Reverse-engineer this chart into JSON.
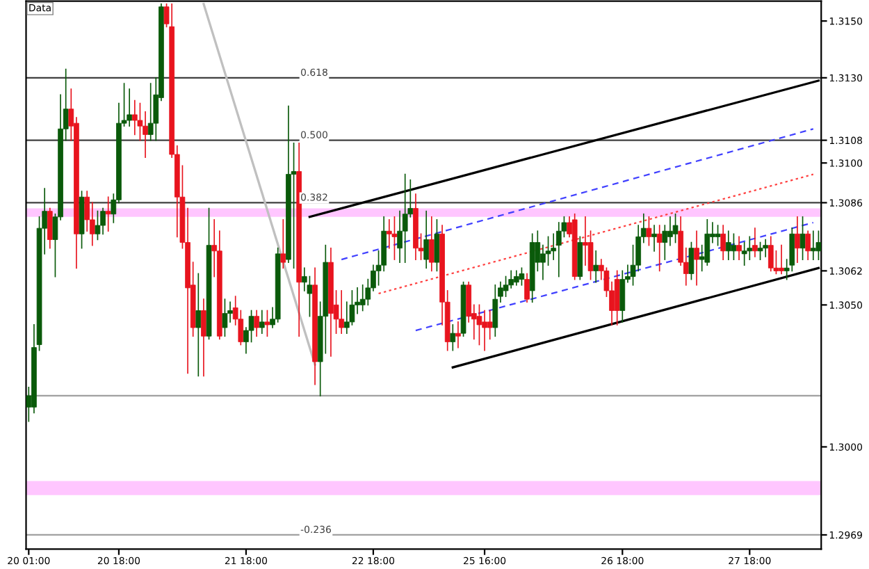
{
  "chart_data": {
    "type": "candlestick",
    "categories": [
      "20 01:00",
      null,
      null,
      null,
      null,
      null,
      null,
      null,
      null,
      null,
      null,
      null,
      null,
      null,
      null,
      null,
      null,
      "20 18:00",
      null,
      null,
      null,
      null,
      null,
      null,
      null,
      null,
      null,
      null,
      null,
      null,
      null,
      null,
      null,
      null,
      null,
      null,
      null,
      null,
      null,
      null,
      null,
      "21 18:00",
      null,
      null,
      null,
      null,
      null,
      null,
      null,
      null,
      null,
      null,
      null,
      null,
      null,
      null,
      null,
      null,
      null,
      null,
      null,
      null,
      null,
      null,
      null,
      "22 18:00",
      null,
      null,
      null,
      null,
      null,
      null,
      null,
      null,
      null,
      null,
      null,
      null,
      null,
      null,
      null,
      null,
      null,
      null,
      null,
      null,
      "25 16:00",
      null,
      null,
      null,
      null,
      null,
      null,
      null,
      null,
      null,
      null,
      null,
      null,
      null,
      null,
      null,
      null,
      null,
      null,
      null,
      null,
      null,
      null,
      null,
      null,
      null,
      "26 18:00",
      null,
      null,
      null,
      null,
      null,
      null,
      null,
      null,
      null,
      null,
      null,
      null,
      null,
      null,
      null,
      null,
      null,
      null,
      null,
      null,
      null,
      null,
      null,
      "27 18:00",
      null,
      null,
      null,
      null,
      null,
      null,
      null,
      null,
      null,
      null,
      null,
      null,
      null
    ],
    "ohlc": [
      [
        1.3014,
        1.3021,
        1.3009,
        1.3018
      ],
      [
        1.3014,
        1.3043,
        1.3012,
        1.3035
      ],
      [
        1.3036,
        1.3081,
        1.3034,
        1.3077
      ],
      [
        1.3077,
        1.3091,
        1.3068,
        1.3083
      ],
      [
        1.3083,
        1.3084,
        1.307,
        1.3073
      ],
      [
        1.3073,
        1.3082,
        1.306,
        1.3081
      ],
      [
        1.3081,
        1.3124,
        1.308,
        1.3112
      ],
      [
        1.3112,
        1.3133,
        1.3108,
        1.3119
      ],
      [
        1.3119,
        1.3126,
        1.3108,
        1.3113
      ],
      [
        1.3114,
        1.3116,
        1.3063,
        1.3075
      ],
      [
        1.3075,
        1.309,
        1.307,
        1.3088
      ],
      [
        1.3088,
        1.309,
        1.3076,
        1.308
      ],
      [
        1.308,
        1.3086,
        1.3071,
        1.3075
      ],
      [
        1.3075,
        1.3083,
        1.3073,
        1.3078
      ],
      [
        1.3078,
        1.3084,
        1.3075,
        1.3083
      ],
      [
        1.3083,
        1.3088,
        1.3076,
        1.3082
      ],
      [
        1.3082,
        1.3089,
        1.3079,
        1.3087
      ],
      [
        1.3087,
        1.3121,
        1.3086,
        1.3114
      ],
      [
        1.3114,
        1.3128,
        1.3113,
        1.3115
      ],
      [
        1.3115,
        1.3126,
        1.3113,
        1.3117
      ],
      [
        1.3117,
        1.3122,
        1.311,
        1.3115
      ],
      [
        1.3115,
        1.3121,
        1.3108,
        1.3113
      ],
      [
        1.3113,
        1.3118,
        1.3102,
        1.311
      ],
      [
        1.311,
        1.3128,
        1.3108,
        1.3114
      ],
      [
        1.3114,
        1.313,
        1.3108,
        1.3124
      ],
      [
        1.3123,
        1.3156,
        1.3122,
        1.3155
      ],
      [
        1.3155,
        1.3156,
        1.3148,
        1.3149
      ],
      [
        1.3148,
        1.3156,
        1.3102,
        1.3103
      ],
      [
        1.3103,
        1.3106,
        1.3074,
        1.3088
      ],
      [
        1.3088,
        1.3099,
        1.307,
        1.3072
      ],
      [
        1.3072,
        1.3084,
        1.3026,
        1.3056
      ],
      [
        1.3057,
        1.3065,
        1.3039,
        1.3042
      ],
      [
        1.3042,
        1.3061,
        1.3025,
        1.3048
      ],
      [
        1.3048,
        1.3052,
        1.3025,
        1.3039
      ],
      [
        1.3039,
        1.3084,
        1.3038,
        1.3071
      ],
      [
        1.3071,
        1.308,
        1.306,
        1.3069
      ],
      [
        1.3069,
        1.3076,
        1.3038,
        1.3039
      ],
      [
        1.3042,
        1.3052,
        1.3039,
        1.3047
      ],
      [
        1.3047,
        1.3051,
        1.3044,
        1.3048
      ],
      [
        1.3049,
        1.3053,
        1.3043,
        1.3045
      ],
      [
        1.3045,
        1.3048,
        1.3036,
        1.3037
      ],
      [
        1.3037,
        1.3042,
        1.3033,
        1.3041
      ],
      [
        1.3041,
        1.3048,
        1.3037,
        1.3046
      ],
      [
        1.3046,
        1.3048,
        1.3039,
        1.3042
      ],
      [
        1.3042,
        1.3048,
        1.304,
        1.3044
      ],
      [
        1.3044,
        1.3048,
        1.3039,
        1.3043
      ],
      [
        1.3043,
        1.3049,
        1.3042,
        1.3045
      ],
      [
        1.3045,
        1.307,
        1.3044,
        1.3068
      ],
      [
        1.3068,
        1.308,
        1.3063,
        1.3065
      ],
      [
        1.3066,
        1.312,
        1.3065,
        1.3096
      ],
      [
        1.3096,
        1.3107,
        1.3063,
        1.3097
      ],
      [
        1.3097,
        1.3107,
        1.3039,
        1.3058
      ],
      [
        1.3058,
        1.3063,
        1.3055,
        1.306
      ],
      [
        1.3054,
        1.306,
        1.3046,
        1.3057
      ],
      [
        1.3057,
        1.3063,
        1.3022,
        1.303
      ],
      [
        1.303,
        1.3051,
        1.3018,
        1.3046
      ],
      [
        1.3046,
        1.3071,
        1.3033,
        1.3065
      ],
      [
        1.3065,
        1.307,
        1.3032,
        1.3047
      ],
      [
        1.305,
        1.3055,
        1.304,
        1.3045
      ],
      [
        1.3045,
        1.3055,
        1.304,
        1.3042
      ],
      [
        1.3042,
        1.3051,
        1.304,
        1.3044
      ],
      [
        1.3044,
        1.3055,
        1.3043,
        1.305
      ],
      [
        1.305,
        1.3056,
        1.3047,
        1.3051
      ],
      [
        1.305,
        1.3057,
        1.3048,
        1.3052
      ],
      [
        1.3052,
        1.3059,
        1.305,
        1.3056
      ],
      [
        1.3056,
        1.3064,
        1.3055,
        1.3062
      ],
      [
        1.3062,
        1.3069,
        1.3057,
        1.3064
      ],
      [
        1.3064,
        1.3081,
        1.3062,
        1.3076
      ],
      [
        1.3076,
        1.308,
        1.307,
        1.3075
      ],
      [
        1.3075,
        1.3081,
        1.3066,
        1.3074
      ],
      [
        1.307,
        1.3083,
        1.3065,
        1.3076
      ],
      [
        1.3076,
        1.3096,
        1.3065,
        1.3082
      ],
      [
        1.3082,
        1.3094,
        1.3081,
        1.3084
      ],
      [
        1.3084,
        1.3089,
        1.3066,
        1.307
      ],
      [
        1.307,
        1.3075,
        1.3066,
        1.3069
      ],
      [
        1.3066,
        1.3083,
        1.3063,
        1.3073
      ],
      [
        1.3073,
        1.3081,
        1.3062,
        1.3065
      ],
      [
        1.3065,
        1.308,
        1.3062,
        1.3075
      ],
      [
        1.3075,
        1.3078,
        1.3043,
        1.3051
      ],
      [
        1.3051,
        1.3055,
        1.3034,
        1.3037
      ],
      [
        1.3037,
        1.3043,
        1.3034,
        1.304
      ],
      [
        1.304,
        1.3044,
        1.3035,
        1.3039
      ],
      [
        1.304,
        1.3058,
        1.3039,
        1.3057
      ],
      [
        1.3057,
        1.3058,
        1.3044,
        1.3046
      ],
      [
        1.3047,
        1.305,
        1.3038,
        1.3045
      ],
      [
        1.3046,
        1.305,
        1.3036,
        1.3043
      ],
      [
        1.3044,
        1.3048,
        1.3034,
        1.3042
      ],
      [
        1.3044,
        1.3048,
        1.3038,
        1.3042
      ],
      [
        1.3042,
        1.3057,
        1.3039,
        1.3052
      ],
      [
        1.3053,
        1.3058,
        1.3051,
        1.3056
      ],
      [
        1.3055,
        1.306,
        1.3053,
        1.3057
      ],
      [
        1.3057,
        1.3062,
        1.3056,
        1.3059
      ],
      [
        1.3058,
        1.3062,
        1.3057,
        1.306
      ],
      [
        1.3059,
        1.3063,
        1.3057,
        1.3061
      ],
      [
        1.3059,
        1.3061,
        1.3051,
        1.3052
      ],
      [
        1.3055,
        1.3075,
        1.3051,
        1.3072
      ],
      [
        1.3065,
        1.3076,
        1.3062,
        1.3072
      ],
      [
        1.3065,
        1.3071,
        1.3059,
        1.3068
      ],
      [
        1.3068,
        1.3074,
        1.3064,
        1.3069
      ],
      [
        1.3069,
        1.3075,
        1.3066,
        1.307
      ],
      [
        1.3071,
        1.3079,
        1.306,
        1.3076
      ],
      [
        1.3076,
        1.3081,
        1.3074,
        1.3079
      ],
      [
        1.3079,
        1.3081,
        1.3074,
        1.3075
      ],
      [
        1.308,
        1.3082,
        1.3059,
        1.306
      ],
      [
        1.306,
        1.3074,
        1.3059,
        1.3072
      ],
      [
        1.3072,
        1.3081,
        1.3064,
        1.3071
      ],
      [
        1.3072,
        1.3076,
        1.3059,
        1.3062
      ],
      [
        1.3062,
        1.3069,
        1.3058,
        1.3064
      ],
      [
        1.3064,
        1.3066,
        1.3059,
        1.3062
      ],
      [
        1.3062,
        1.3063,
        1.3053,
        1.3055
      ],
      [
        1.3055,
        1.3058,
        1.3043,
        1.3048
      ],
      [
        1.3059,
        1.3062,
        1.3043,
        1.3048
      ],
      [
        1.3048,
        1.3062,
        1.3044,
        1.3059
      ],
      [
        1.3059,
        1.3064,
        1.3058,
        1.306
      ],
      [
        1.306,
        1.3071,
        1.3057,
        1.3064
      ],
      [
        1.3064,
        1.3078,
        1.3062,
        1.3074
      ],
      [
        1.3074,
        1.3082,
        1.3072,
        1.3077
      ],
      [
        1.3077,
        1.3081,
        1.3071,
        1.3074
      ],
      [
        1.3074,
        1.3078,
        1.3069,
        1.3075
      ],
      [
        1.3075,
        1.3078,
        1.3062,
        1.3072
      ],
      [
        1.3072,
        1.3078,
        1.3066,
        1.3076
      ],
      [
        1.3074,
        1.3081,
        1.3071,
        1.3076
      ],
      [
        1.3075,
        1.3082,
        1.3072,
        1.3078
      ],
      [
        1.3076,
        1.3081,
        1.3064,
        1.3065
      ],
      [
        1.3065,
        1.307,
        1.3057,
        1.3061
      ],
      [
        1.3061,
        1.3072,
        1.3059,
        1.307
      ],
      [
        1.307,
        1.3076,
        1.3057,
        1.3066
      ],
      [
        1.3066,
        1.3071,
        1.3062,
        1.3067
      ],
      [
        1.3065,
        1.308,
        1.3064,
        1.3075
      ],
      [
        1.3074,
        1.3079,
        1.3072,
        1.3075
      ],
      [
        1.3074,
        1.3078,
        1.3071,
        1.3075
      ],
      [
        1.3075,
        1.3078,
        1.3066,
        1.3069
      ],
      [
        1.3069,
        1.3076,
        1.3066,
        1.3072
      ],
      [
        1.3069,
        1.3075,
        1.3066,
        1.3071
      ],
      [
        1.3071,
        1.3074,
        1.3066,
        1.3069
      ],
      [
        1.3068,
        1.3072,
        1.3064,
        1.3069
      ],
      [
        1.3069,
        1.3074,
        1.3066,
        1.307
      ],
      [
        1.3071,
        1.3077,
        1.3067,
        1.3069
      ],
      [
        1.3069,
        1.3072,
        1.3066,
        1.307
      ],
      [
        1.307,
        1.3073,
        1.3067,
        1.3071
      ],
      [
        1.3071,
        1.3074,
        1.3062,
        1.3063
      ],
      [
        1.3063,
        1.3069,
        1.3061,
        1.3062
      ],
      [
        1.3063,
        1.3071,
        1.3061,
        1.3062
      ],
      [
        1.3062,
        1.3066,
        1.3059,
        1.3063
      ],
      [
        1.3064,
        1.3077,
        1.3062,
        1.3075
      ],
      [
        1.3075,
        1.3081,
        1.3065,
        1.307
      ],
      [
        1.307,
        1.3081,
        1.3066,
        1.3075
      ],
      [
        1.3075,
        1.3076,
        1.3066,
        1.3069
      ],
      [
        1.3069,
        1.3076,
        1.3066,
        1.307
      ],
      [
        1.3069,
        1.3076,
        1.3066,
        1.3072
      ]
    ],
    "colors": [
      "#0a5a0a",
      "#0a5a0a",
      "#0a5a0a",
      "#0a5a0a",
      "#e8141e",
      "#0a5a0a",
      "#0a5a0a",
      "#0a5a0a",
      "#e8141e",
      "#e8141e",
      "#0a5a0a",
      "#e8141e",
      "#e8141e",
      "#0a5a0a",
      "#0a5a0a",
      "#e8141e",
      "#0a5a0a",
      "#0a5a0a",
      "#0a5a0a",
      "#0a5a0a",
      "#e8141e",
      "#e8141e",
      "#e8141e",
      "#0a5a0a",
      "#0a5a0a",
      "#0a5a0a",
      "#e8141e",
      "#e8141e",
      "#e8141e",
      "#e8141e",
      "#e8141e",
      "#e8141e",
      "#0a5a0a",
      "#e8141e",
      "#0a5a0a",
      "#e8141e",
      "#e8141e",
      "#0a5a0a",
      "#0a5a0a",
      "#e8141e",
      "#e8141e",
      "#0a5a0a",
      "#0a5a0a",
      "#e8141e",
      "#0a5a0a",
      "#e8141e",
      "#0a5a0a",
      "#0a5a0a",
      "#e8141e",
      "#0a5a0a",
      "#0a5a0a",
      "#e8141e",
      "#0a5a0a",
      "#0a5a0a",
      "#e8141e",
      "#0a5a0a",
      "#0a5a0a",
      "#e8141e",
      "#e8141e",
      "#e8141e",
      "#0a5a0a",
      "#0a5a0a",
      "#0a5a0a",
      "#0a5a0a",
      "#0a5a0a",
      "#0a5a0a",
      "#0a5a0a",
      "#0a5a0a",
      "#e8141e",
      "#e8141e",
      "#0a5a0a",
      "#0a5a0a",
      "#0a5a0a",
      "#e8141e",
      "#e8141e",
      "#0a5a0a",
      "#e8141e",
      "#0a5a0a",
      "#e8141e",
      "#e8141e",
      "#0a5a0a",
      "#e8141e",
      "#0a5a0a",
      "#e8141e",
      "#e8141e",
      "#e8141e",
      "#e8141e",
      "#e8141e",
      "#0a5a0a",
      "#0a5a0a",
      "#0a5a0a",
      "#0a5a0a",
      "#0a5a0a",
      "#0a5a0a",
      "#e8141e",
      "#0a5a0a",
      "#0a5a0a",
      "#0a5a0a",
      "#0a5a0a",
      "#0a5a0a",
      "#0a5a0a",
      "#0a5a0a",
      "#e8141e",
      "#e8141e",
      "#0a5a0a",
      "#e8141e",
      "#e8141e",
      "#0a5a0a",
      "#e8141e",
      "#e8141e",
      "#e8141e",
      "#e8141e",
      "#0a5a0a",
      "#0a5a0a",
      "#0a5a0a",
      "#0a5a0a",
      "#0a5a0a",
      "#e8141e",
      "#0a5a0a",
      "#e8141e",
      "#0a5a0a",
      "#0a5a0a",
      "#0a5a0a",
      "#e8141e",
      "#e8141e",
      "#0a5a0a",
      "#e8141e",
      "#0a5a0a",
      "#0a5a0a",
      "#0a5a0a",
      "#0a5a0a",
      "#e8141e",
      "#0a5a0a",
      "#0a5a0a",
      "#e8141e",
      "#0a5a0a",
      "#0a5a0a",
      "#e8141e",
      "#0a5a0a",
      "#0a5a0a",
      "#e8141e",
      "#e8141e",
      "#e8141e",
      "#0a5a0a",
      "#0a5a0a",
      "#e8141e",
      "#0a5a0a",
      "#e8141e",
      "#0a5a0a",
      "#0a5a0a"
    ],
    "series": [
      {
        "type": "line",
        "color": "#000000",
        "line_style": "solid",
        "values": [
          null,
          null,
          null,
          null,
          null,
          null,
          null,
          null,
          null,
          null,
          null,
          null,
          null,
          null,
          null,
          null,
          null,
          null,
          null,
          null,
          null,
          null,
          null,
          null,
          null,
          null,
          null,
          null,
          null,
          null,
          null,
          null,
          null,
          null,
          null,
          null,
          null,
          null,
          null,
          null,
          null,
          null,
          null,
          null,
          null,
          null,
          null,
          null,
          null,
          null,
          null,
          null,
          null,
          1.3081,
          null,
          null,
          null,
          null,
          null,
          null,
          null,
          null,
          null,
          null,
          null,
          null,
          null,
          null,
          null,
          null,
          null,
          null,
          null,
          null,
          null,
          null,
          null,
          null,
          null,
          null,
          null,
          null,
          null,
          null,
          null,
          null,
          null,
          null,
          null,
          null,
          null,
          null,
          null,
          null,
          null,
          null,
          null,
          null,
          null,
          null,
          null,
          null,
          null,
          null,
          null,
          null,
          null,
          null,
          null,
          null,
          null,
          null,
          null,
          null,
          null,
          null,
          null,
          null,
          null,
          null,
          null,
          null,
          null,
          null,
          null,
          null,
          null,
          null,
          null,
          null,
          null,
          null,
          null,
          null,
          null,
          null,
          null,
          null,
          null,
          null,
          null,
          null,
          null,
          null,
          null,
          null,
          null,
          null,
          null,
          1.3129
        ]
      },
      {
        "type": "line",
        "color": "#000000",
        "line_style": "solid",
        "values": [
          null,
          null,
          null,
          null,
          null,
          null,
          null,
          null,
          null,
          null,
          null,
          null,
          null,
          null,
          null,
          null,
          null,
          null,
          null,
          null,
          null,
          null,
          null,
          null,
          null,
          null,
          null,
          null,
          null,
          null,
          null,
          null,
          null,
          null,
          null,
          null,
          null,
          null,
          null,
          null,
          null,
          null,
          null,
          null,
          null,
          null,
          null,
          null,
          null,
          null,
          null,
          null,
          null,
          null,
          null,
          null,
          null,
          null,
          null,
          null,
          null,
          null,
          null,
          null,
          null,
          null,
          null,
          null,
          null,
          null,
          null,
          null,
          null,
          null,
          null,
          null,
          null,
          null,
          null,
          null,
          1.3028,
          null,
          null,
          null,
          null,
          null,
          null,
          null,
          null,
          null,
          null,
          null,
          null,
          null,
          null,
          null,
          null,
          null,
          null,
          null,
          null,
          null,
          null,
          null,
          null,
          null,
          null,
          null,
          null,
          null,
          null,
          null,
          null,
          null,
          null,
          null,
          null,
          null,
          null,
          null,
          null,
          null,
          null,
          null,
          null,
          null,
          null,
          null,
          null,
          null,
          null,
          null,
          null,
          null,
          null,
          null,
          null,
          null,
          null,
          null,
          null,
          null,
          null,
          null,
          null,
          null,
          null,
          null,
          null,
          1.3063
        ]
      },
      {
        "type": "line",
        "color": "#4040ff",
        "line_style": "dashed",
        "values": [
          null,
          null,
          null,
          null,
          null,
          null,
          null,
          null,
          null,
          null,
          null,
          null,
          null,
          null,
          null,
          null,
          null,
          null,
          null,
          null,
          null,
          null,
          null,
          null,
          null,
          null,
          null,
          null,
          null,
          null,
          null,
          null,
          null,
          null,
          null,
          null,
          null,
          null,
          null,
          null,
          null,
          null,
          null,
          null,
          null,
          null,
          null,
          null,
          null,
          null,
          null,
          null,
          null,
          null,
          null,
          null,
          null,
          null,
          null,
          1.3066,
          null,
          null,
          null,
          null,
          null,
          null,
          null,
          null,
          null,
          null,
          null,
          null,
          null,
          null,
          null,
          null,
          null,
          null,
          null,
          null,
          null,
          null,
          null,
          null,
          null,
          null,
          null,
          null,
          null,
          null,
          null,
          null,
          null,
          null,
          null,
          null,
          null,
          null,
          null,
          null,
          null,
          null,
          null,
          null,
          null,
          null,
          null,
          null,
          null,
          null,
          null,
          null,
          null,
          null,
          null,
          null,
          null,
          null,
          null,
          null,
          null,
          null,
          null,
          null,
          null,
          null,
          null,
          null,
          null,
          null,
          null,
          null,
          null,
          null,
          null,
          null,
          null,
          null,
          null,
          null,
          null,
          null,
          null,
          null,
          null,
          null,
          null,
          null,
          1.3112,
          null
        ]
      },
      {
        "type": "line",
        "color": "#ff4040",
        "line_style": "dotted",
        "values": [
          null,
          null,
          null,
          null,
          null,
          null,
          null,
          null,
          null,
          null,
          null,
          null,
          null,
          null,
          null,
          null,
          null,
          null,
          null,
          null,
          null,
          null,
          null,
          null,
          null,
          null,
          null,
          null,
          null,
          null,
          null,
          null,
          null,
          null,
          null,
          null,
          null,
          null,
          null,
          null,
          null,
          null,
          null,
          null,
          null,
          null,
          null,
          null,
          null,
          null,
          null,
          null,
          null,
          null,
          null,
          null,
          null,
          null,
          null,
          null,
          null,
          null,
          null,
          null,
          null,
          null,
          1.3054,
          null,
          null,
          null,
          null,
          null,
          null,
          null,
          null,
          null,
          null,
          null,
          null,
          null,
          null,
          null,
          null,
          null,
          null,
          null,
          null,
          null,
          null,
          null,
          null,
          null,
          null,
          null,
          null,
          null,
          null,
          null,
          null,
          null,
          null,
          null,
          null,
          null,
          null,
          null,
          null,
          null,
          null,
          null,
          null,
          null,
          null,
          null,
          null,
          null,
          null,
          null,
          null,
          null,
          null,
          null,
          null,
          null,
          null,
          null,
          null,
          null,
          null,
          null,
          null,
          null,
          null,
          null,
          null,
          null,
          null,
          null,
          null,
          null,
          null,
          null,
          null,
          null,
          null,
          null,
          null,
          null,
          1.3096,
          null
        ]
      },
      {
        "type": "line",
        "color": "#4040ff",
        "line_style": "dashed",
        "values": [
          null,
          null,
          null,
          null,
          null,
          null,
          null,
          null,
          null,
          null,
          null,
          null,
          null,
          null,
          null,
          null,
          null,
          null,
          null,
          null,
          null,
          null,
          null,
          null,
          null,
          null,
          null,
          null,
          null,
          null,
          null,
          null,
          null,
          null,
          null,
          null,
          null,
          null,
          null,
          null,
          null,
          null,
          null,
          null,
          null,
          null,
          null,
          null,
          null,
          null,
          null,
          null,
          null,
          null,
          null,
          null,
          null,
          null,
          null,
          null,
          null,
          null,
          null,
          null,
          null,
          null,
          null,
          null,
          null,
          null,
          null,
          null,
          null,
          1.3041,
          null,
          null,
          null,
          null,
          null,
          null,
          null,
          null,
          null,
          null,
          null,
          null,
          null,
          null,
          null,
          null,
          null,
          null,
          null,
          null,
          null,
          null,
          null,
          null,
          null,
          null,
          null,
          null,
          null,
          null,
          null,
          null,
          null,
          null,
          null,
          null,
          null,
          null,
          null,
          null,
          null,
          null,
          null,
          null,
          null,
          null,
          null,
          null,
          null,
          null,
          null,
          null,
          null,
          null,
          null,
          null,
          null,
          null,
          null,
          null,
          null,
          null,
          null,
          null,
          null,
          null,
          null,
          null,
          null,
          null,
          null,
          null,
          null,
          null,
          1.3079,
          null
        ]
      },
      {
        "type": "line",
        "color": "#c0c0c0",
        "line_style": "solid",
        "values": [
          null,
          null,
          null,
          null,
          null,
          null,
          null,
          null,
          null,
          null,
          null,
          null,
          null,
          null,
          null,
          null,
          null,
          null,
          null,
          null,
          null,
          null,
          null,
          null,
          null,
          null,
          null,
          null,
          null,
          null,
          null,
          null,
          null,
          1.3156,
          null,
          null,
          null,
          null,
          null,
          null,
          null,
          null,
          null,
          null,
          null,
          null,
          null,
          null,
          null,
          null,
          null,
          null,
          null,
          null,
          1.3029,
          null,
          null,
          null,
          null,
          null,
          null,
          null,
          null,
          null,
          null,
          null,
          null,
          null,
          null,
          null,
          null,
          null,
          null,
          null,
          null,
          null,
          null,
          null,
          null,
          null,
          null,
          null,
          null,
          null,
          null,
          null,
          null,
          null,
          null,
          null,
          null,
          null,
          null,
          null,
          null,
          null,
          null,
          null,
          null,
          null,
          null,
          null,
          null,
          null,
          null,
          null,
          null,
          null,
          null,
          null,
          null,
          null,
          null,
          null,
          null,
          null,
          null,
          null,
          null,
          null,
          null,
          null,
          null,
          null,
          null,
          null,
          null,
          null,
          null,
          null,
          null,
          null,
          null,
          null,
          null,
          null,
          null,
          null,
          null,
          null,
          null,
          null,
          null,
          null,
          null,
          null,
          null,
          null,
          null,
          null
        ]
      }
    ],
    "ref_lines": [
      {
        "axis": "y",
        "value": 1.313,
        "color": "#404040"
      },
      {
        "axis": "y",
        "value": 1.3108,
        "color": "#404040"
      },
      {
        "axis": "y",
        "value": 1.3086,
        "color": "#404040"
      },
      {
        "axis": "y",
        "value": 1.3018,
        "color": "#a0a0a0"
      },
      {
        "axis": "y",
        "value": 1.2969,
        "color": "#a0a0a0"
      }
    ],
    "bands": [
      {
        "axis": "y",
        "from": 1.3081,
        "to": 1.3084,
        "color": "#ff80ff"
      },
      {
        "axis": "y",
        "from": 1.2983,
        "to": 1.2988,
        "color": "#ff80ff"
      }
    ],
    "ylim": [
      1.2964,
      1.3157
    ],
    "yticks": [
      {
        "value": 1.315,
        "label": "1.3150"
      },
      {
        "value": 1.313,
        "label": "1.3130"
      },
      {
        "value": 1.3108,
        "label": "1.3108"
      },
      {
        "value": 1.31,
        "label": "1.3100"
      },
      {
        "value": 1.3086,
        "label": "1.3086"
      },
      {
        "value": 1.3062,
        "label": "1.3062"
      },
      {
        "value": 1.305,
        "label": "1.3050"
      },
      {
        "value": 1.3,
        "label": "1.3000"
      },
      {
        "value": 1.2969,
        "label": "1.2969"
      }
    ],
    "annotations": [
      "Data",
      {
        "text": "0.618",
        "y": 1.313
      },
      {
        "text": "0.500",
        "y": 1.3108
      },
      {
        "text": "0.382",
        "y": 1.3086
      },
      {
        "text": "-0.236",
        "y": 1.2969
      }
    ],
    "grid": false,
    "legend": false
  }
}
